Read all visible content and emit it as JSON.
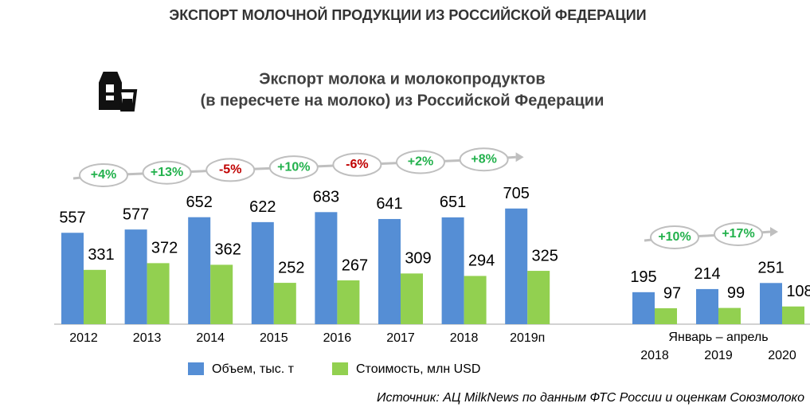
{
  "header": {
    "title": "ЭКСПОРТ МОЛОЧНОЙ ПРОДУКЦИИ ИЗ РОССИЙСКОЙ ФЕДЕРАЦИИ",
    "source": "Источник: АЦ MilkNews по данным ФТС России и оценкам Союзмолоко"
  },
  "chart_data": [
    {
      "type": "bar",
      "title": [
        "Экспорт молока и молокопродуктов",
        "(в пересчете на молоко) из Российской Федерации"
      ],
      "categories": [
        "2012",
        "2013",
        "2014",
        "2015",
        "2016",
        "2017",
        "2018",
        "2019п"
      ],
      "series": [
        {
          "name": "Объем, тыс. т",
          "color": "#558ed5",
          "values": [
            557,
            577,
            652,
            622,
            683,
            641,
            651,
            705
          ]
        },
        {
          "name": "Стоимость, млн USD",
          "color": "#92d050",
          "values": [
            331,
            372,
            362,
            252,
            267,
            309,
            294,
            325
          ]
        }
      ],
      "changes": [
        {
          "text": "+4%",
          "color": "#22b14c"
        },
        {
          "text": "+13%",
          "color": "#22b14c"
        },
        {
          "text": "-5%",
          "color": "#c00000"
        },
        {
          "text": "+10%",
          "color": "#22b14c"
        },
        {
          "text": "-6%",
          "color": "#c00000"
        },
        {
          "text": "+2%",
          "color": "#22b14c"
        },
        {
          "text": "+8%",
          "color": "#22b14c"
        }
      ]
    },
    {
      "type": "bar",
      "group_label": "Январь – апрель",
      "categories": [
        "2018",
        "2019",
        "2020"
      ],
      "series": [
        {
          "color": "#558ed5",
          "values": [
            195,
            214,
            251
          ]
        },
        {
          "color": "#92d050",
          "values": [
            97,
            99,
            108
          ]
        }
      ],
      "changes": [
        {
          "text": "+10%",
          "color": "#22b14c"
        },
        {
          "text": "+17%",
          "color": "#22b14c"
        }
      ]
    }
  ]
}
